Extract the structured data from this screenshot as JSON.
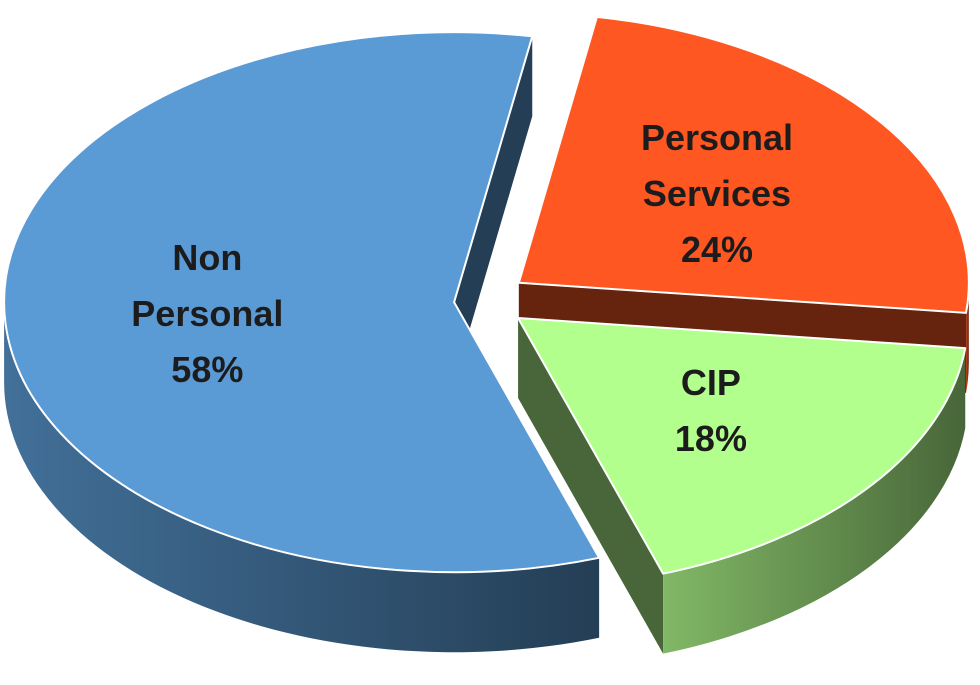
{
  "chart_data": {
    "type": "pie",
    "categories": [
      "Personal Services",
      "CIP",
      "Non Personal"
    ],
    "values": [
      24,
      18,
      58
    ],
    "value_labels": [
      "24%",
      "18%",
      "58%"
    ],
    "colors": [
      "#ff5722",
      "#b3ff8e",
      "#5b9bd5"
    ]
  }
}
